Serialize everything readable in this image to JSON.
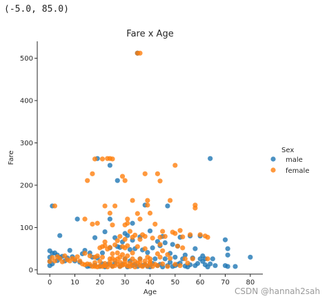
{
  "output_text": "(-5.0, 85.0)",
  "watermark": "CSDN @hannah2sah",
  "chart_data": {
    "type": "scatter",
    "title": "Fare x Age",
    "xlabel": "Age",
    "ylabel": "Fare",
    "xlim": [
      -5.0,
      85.0
    ],
    "ylim": [
      -10,
      540
    ],
    "xticks": [
      0,
      10,
      20,
      30,
      40,
      50,
      60,
      70,
      80
    ],
    "yticks": [
      0,
      100,
      200,
      300,
      400,
      500
    ],
    "grid": false,
    "legend": {
      "title": "Sex",
      "placement": "right"
    },
    "series": [
      {
        "name": "male",
        "color": "#1f77b4",
        "points": [
          [
            35,
            512
          ],
          [
            35,
            512
          ],
          [
            64,
            263
          ],
          [
            19,
            263
          ],
          [
            24,
            247
          ],
          [
            27,
            211
          ],
          [
            38,
            153
          ],
          [
            1,
            151
          ],
          [
            47,
            151
          ],
          [
            11,
            120
          ],
          [
            24,
            120
          ],
          [
            33,
            110
          ],
          [
            4,
            81
          ],
          [
            31,
            81
          ],
          [
            56,
            80
          ],
          [
            60,
            80
          ],
          [
            45,
            79
          ],
          [
            52,
            77
          ],
          [
            70,
            71
          ],
          [
            71,
            50
          ],
          [
            58,
            50
          ],
          [
            51,
            56
          ],
          [
            22,
            90
          ],
          [
            30,
            86
          ],
          [
            40,
            92
          ],
          [
            36,
            78
          ],
          [
            26,
            76
          ],
          [
            18,
            76
          ],
          [
            43,
            67
          ],
          [
            49,
            60
          ],
          [
            29,
            66
          ],
          [
            33,
            70
          ],
          [
            46,
            64
          ],
          [
            0,
            45
          ],
          [
            2,
            40
          ],
          [
            0,
            30
          ],
          [
            1,
            39
          ],
          [
            0,
            20
          ],
          [
            3,
            35
          ],
          [
            5,
            32
          ],
          [
            8,
            46
          ],
          [
            9,
            31
          ],
          [
            14,
            46
          ],
          [
            16,
            40
          ],
          [
            13,
            38
          ],
          [
            17,
            30
          ],
          [
            19,
            28
          ],
          [
            21,
            40
          ],
          [
            24,
            52
          ],
          [
            27,
            55
          ],
          [
            28,
            53
          ],
          [
            32,
            48
          ],
          [
            34,
            50
          ],
          [
            37,
            47
          ],
          [
            39,
            41
          ],
          [
            41,
            52
          ],
          [
            44,
            57
          ],
          [
            48,
            39
          ],
          [
            50,
            30
          ],
          [
            54,
            35
          ],
          [
            57,
            28
          ],
          [
            61,
            33
          ],
          [
            62,
            26
          ],
          [
            65,
            26
          ],
          [
            66,
            10
          ],
          [
            70,
            10
          ],
          [
            71,
            8
          ],
          [
            74,
            8
          ],
          [
            80,
            30
          ],
          [
            71,
            35
          ],
          [
            20,
            8
          ],
          [
            22,
            7
          ],
          [
            25,
            9
          ],
          [
            28,
            8
          ],
          [
            31,
            7
          ],
          [
            33,
            10
          ],
          [
            35,
            8
          ],
          [
            38,
            13
          ],
          [
            40,
            7
          ],
          [
            42,
            26
          ],
          [
            44,
            13
          ],
          [
            45,
            7
          ],
          [
            47,
            10
          ],
          [
            49,
            8
          ],
          [
            51,
            13
          ],
          [
            53,
            26
          ],
          [
            55,
            7
          ],
          [
            58,
            10
          ],
          [
            60,
            26
          ],
          [
            62,
            12
          ],
          [
            63,
            7
          ],
          [
            21,
            14
          ],
          [
            23,
            13
          ],
          [
            26,
            16
          ],
          [
            29,
            13
          ],
          [
            30,
            26
          ],
          [
            32,
            21
          ],
          [
            34,
            13
          ],
          [
            36,
            26
          ],
          [
            37,
            10
          ],
          [
            39,
            8
          ],
          [
            41,
            15
          ],
          [
            43,
            10
          ],
          [
            46,
            26
          ],
          [
            48,
            18
          ],
          [
            50,
            10
          ],
          [
            52,
            16
          ],
          [
            54,
            9
          ],
          [
            56,
            12
          ],
          [
            59,
            15
          ],
          [
            61,
            20
          ],
          [
            64,
            14
          ],
          [
            18,
            11
          ],
          [
            16,
            9
          ],
          [
            15,
            8
          ],
          [
            12,
            18
          ],
          [
            10,
            21
          ],
          [
            7,
            28
          ],
          [
            6,
            21
          ],
          [
            4,
            29
          ],
          [
            3,
            22
          ],
          [
            1,
            14
          ],
          [
            0,
            10
          ]
        ]
      },
      {
        "name": "female",
        "color": "#ff7f0e",
        "points": [
          [
            35,
            512
          ],
          [
            36,
            512
          ],
          [
            23,
            263
          ],
          [
            24,
            263
          ],
          [
            25,
            262
          ],
          [
            21,
            262
          ],
          [
            18,
            262
          ],
          [
            38,
            227
          ],
          [
            43,
            227
          ],
          [
            17,
            227
          ],
          [
            15,
            211
          ],
          [
            30,
            211
          ],
          [
            44,
            210
          ],
          [
            50,
            247
          ],
          [
            29,
            221
          ],
          [
            39,
            164
          ],
          [
            48,
            164
          ],
          [
            33,
            164
          ],
          [
            22,
            151
          ],
          [
            26,
            151
          ],
          [
            2,
            151
          ],
          [
            58,
            153
          ],
          [
            58,
            146
          ],
          [
            39,
            153
          ],
          [
            24,
            134
          ],
          [
            17,
            108
          ],
          [
            14,
            120
          ],
          [
            31,
            110
          ],
          [
            40,
            134
          ],
          [
            35,
            133
          ],
          [
            31,
            120
          ],
          [
            36,
            120
          ],
          [
            19,
            110
          ],
          [
            25,
            106
          ],
          [
            42,
            108
          ],
          [
            45,
            91
          ],
          [
            46,
            79
          ],
          [
            49,
            89
          ],
          [
            53,
            78
          ],
          [
            62,
            80
          ],
          [
            63,
            77
          ],
          [
            52,
            93
          ],
          [
            56,
            83
          ],
          [
            60,
            83
          ],
          [
            50,
            86
          ],
          [
            30,
            106
          ],
          [
            32,
            91
          ],
          [
            34,
            82
          ],
          [
            37,
            83
          ],
          [
            38,
            79
          ],
          [
            41,
            75
          ],
          [
            44,
            77
          ],
          [
            27,
            69
          ],
          [
            28,
            79
          ],
          [
            33,
            77
          ],
          [
            36,
            72
          ],
          [
            20,
            52
          ],
          [
            21,
            55
          ],
          [
            22,
            57
          ],
          [
            23,
            49
          ],
          [
            24,
            53
          ],
          [
            26,
            59
          ],
          [
            29,
            55
          ],
          [
            30,
            52
          ],
          [
            31,
            57
          ],
          [
            35,
            55
          ],
          [
            38,
            50
          ],
          [
            14,
            39
          ],
          [
            16,
            33
          ],
          [
            18,
            30
          ],
          [
            19,
            33
          ],
          [
            21,
            30
          ],
          [
            24,
            26
          ],
          [
            25,
            27
          ],
          [
            27,
            26
          ],
          [
            28,
            30
          ],
          [
            30,
            26
          ],
          [
            33,
            26
          ],
          [
            36,
            26
          ],
          [
            40,
            26
          ],
          [
            44,
            30
          ],
          [
            48,
            27
          ],
          [
            54,
            26
          ],
          [
            57,
            26
          ],
          [
            63,
            26
          ],
          [
            0,
            20
          ],
          [
            1,
            29
          ],
          [
            2,
            21
          ],
          [
            3,
            31
          ],
          [
            4,
            27
          ],
          [
            5,
            19
          ],
          [
            6,
            33
          ],
          [
            7,
            24
          ],
          [
            8,
            21
          ],
          [
            9,
            27
          ],
          [
            10,
            24
          ],
          [
            11,
            31
          ],
          [
            12,
            21
          ],
          [
            13,
            14
          ],
          [
            14,
            12
          ],
          [
            15,
            14
          ],
          [
            16,
            13
          ],
          [
            17,
            8
          ],
          [
            18,
            8
          ],
          [
            19,
            7
          ],
          [
            20,
            9
          ],
          [
            21,
            8
          ],
          [
            22,
            10
          ],
          [
            23,
            7
          ],
          [
            24,
            13
          ],
          [
            25,
            8
          ],
          [
            26,
            10
          ],
          [
            27,
            14
          ],
          [
            28,
            8
          ],
          [
            29,
            11
          ],
          [
            30,
            13
          ],
          [
            31,
            9
          ],
          [
            32,
            8
          ],
          [
            33,
            12
          ],
          [
            34,
            7
          ],
          [
            35,
            16
          ],
          [
            36,
            10
          ],
          [
            37,
            8
          ],
          [
            38,
            13
          ],
          [
            39,
            9
          ],
          [
            40,
            15
          ],
          [
            41,
            8
          ],
          [
            42,
            13
          ],
          [
            43,
            10
          ],
          [
            45,
            14
          ],
          [
            47,
            8
          ],
          [
            50,
            13
          ],
          [
            52,
            10
          ],
          [
            55,
            16
          ],
          [
            18,
            17
          ],
          [
            20,
            20
          ],
          [
            22,
            15
          ],
          [
            24,
            18
          ],
          [
            26,
            22
          ],
          [
            28,
            18
          ],
          [
            30,
            19
          ],
          [
            32,
            16
          ],
          [
            34,
            20
          ],
          [
            36,
            18
          ],
          [
            38,
            21
          ],
          [
            40,
            19
          ],
          [
            25,
            38
          ],
          [
            27,
            40
          ],
          [
            29,
            36
          ],
          [
            31,
            33
          ],
          [
            33,
            40
          ],
          [
            39,
            30
          ],
          [
            43,
            38
          ],
          [
            45,
            45
          ],
          [
            47,
            36
          ],
          [
            51,
            56
          ],
          [
            53,
            52
          ],
          [
            44,
            60
          ],
          [
            22,
            66
          ],
          [
            30,
            72
          ]
        ]
      }
    ]
  }
}
